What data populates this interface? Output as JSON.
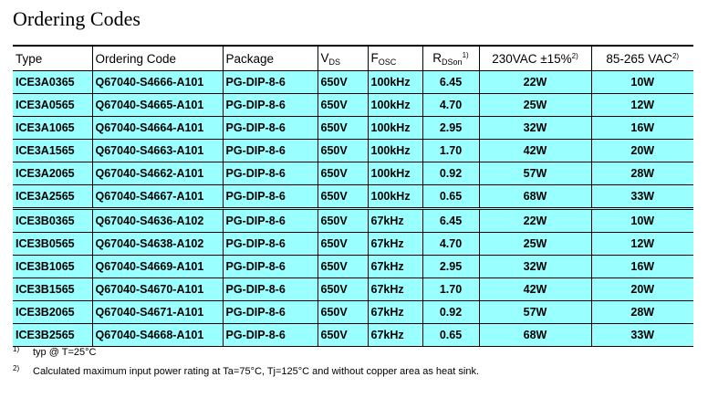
{
  "title": "Ordering Codes",
  "headers": {
    "type": "Type",
    "code": "Ordering Code",
    "package": "Package",
    "vds": "V",
    "vds_sub": "DS",
    "fosc": "F",
    "fosc_sub": "OSC",
    "rds": "R",
    "rds_sub": "DSon",
    "rds_sup": "1)",
    "p230": "230VAC ±15%",
    "p230_sup": "2)",
    "p85": "85-265 VAC",
    "p85_sup": "2)"
  },
  "rows": [
    [
      "ICE3A0365",
      "Q67040-S4666-A101",
      "PG-DIP-8-6",
      "650V",
      "100kHz",
      "6.45",
      "22W",
      "10W"
    ],
    [
      "ICE3A0565",
      "Q67040-S4665-A101",
      "PG-DIP-8-6",
      "650V",
      "100kHz",
      "4.70",
      "25W",
      "12W"
    ],
    [
      "ICE3A1065",
      "Q67040-S4664-A101",
      "PG-DIP-8-6",
      "650V",
      "100kHz",
      "2.95",
      "32W",
      "16W"
    ],
    [
      "ICE3A1565",
      "Q67040-S4663-A101",
      "PG-DIP-8-6",
      "650V",
      "100kHz",
      "1.70",
      "42W",
      "20W"
    ],
    [
      "ICE3A2065",
      "Q67040-S4662-A101",
      "PG-DIP-8-6",
      "650V",
      "100kHz",
      "0.92",
      "57W",
      "28W"
    ],
    [
      "ICE3A2565",
      "Q67040-S4667-A101",
      "PG-DIP-8-6",
      "650V",
      "100kHz",
      "0.65",
      "68W",
      "33W"
    ],
    [
      "ICE3B0365",
      "Q67040-S4636-A102",
      "PG-DIP-8-6",
      "650V",
      "67kHz",
      "6.45",
      "22W",
      "10W"
    ],
    [
      "ICE3B0565",
      "Q67040-S4638-A102",
      "PG-DIP-8-6",
      "650V",
      "67kHz",
      "4.70",
      "25W",
      "12W"
    ],
    [
      "ICE3B1065",
      "Q67040-S4669-A101",
      "PG-DIP-8-6",
      "650V",
      "67kHz",
      "2.95",
      "32W",
      "16W"
    ],
    [
      "ICE3B1565",
      "Q67040-S4670-A101",
      "PG-DIP-8-6",
      "650V",
      "67kHz",
      "1.70",
      "42W",
      "20W"
    ],
    [
      "ICE3B2065",
      "Q67040-S4671-A101",
      "PG-DIP-8-6",
      "650V",
      "67kHz",
      "0.92",
      "57W",
      "28W"
    ],
    [
      "ICE3B2565",
      "Q67040-S4668-A101",
      "PG-DIP-8-6",
      "650V",
      "67kHz",
      "0.65",
      "68W",
      "33W"
    ]
  ],
  "footnotes": [
    {
      "mark": "1)",
      "text": "typ @ T=25°C"
    },
    {
      "mark": "2)",
      "text": "Calculated maximum input power rating at Ta=75°C, Tj=125°C and without copper area as heat sink."
    }
  ],
  "colors": {
    "row_bg": "#99ffff"
  }
}
